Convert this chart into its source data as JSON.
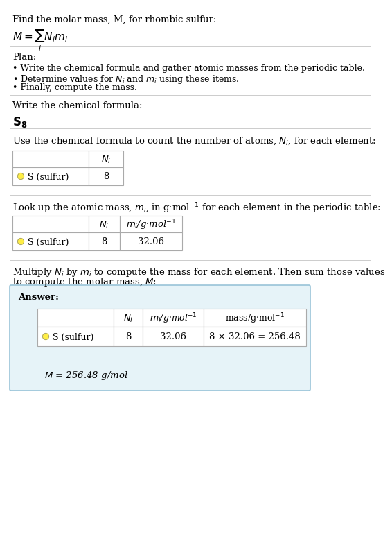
{
  "title_line1": "Find the molar mass, M, for rhombic sulfur:",
  "title_formula": "$M = \\sum_i N_i m_i$",
  "section1_header": "Plan:",
  "section1_bullets": [
    "• Write the chemical formula and gather atomic masses from the periodic table.",
    "• Determine values for $N_i$ and $m_i$ using these items.",
    "• Finally, compute the mass."
  ],
  "section2_header": "Write the chemical formula:",
  "section2_formula": "$\\mathbf{S_8}$",
  "section3_header": "Use the chemical formula to count the number of atoms, $N_i$, for each element:",
  "section3_col": "$N_i$",
  "section3_element": "S (sulfur)",
  "section3_Ni": "8",
  "section4_header": "Look up the atomic mass, $m_i$, in g·mol$^{-1}$ for each element in the periodic table:",
  "section4_cols": [
    "$N_i$",
    "$m_i$/g·mol$^{-1}$"
  ],
  "section4_element": "S (sulfur)",
  "section4_Ni": "8",
  "section4_mi": "32.06",
  "section5_line1": "Multiply $N_i$ by $m_i$ to compute the mass for each element. Then sum those values",
  "section5_line2": "to compute the molar mass, $M$:",
  "answer_label": "Answer:",
  "answer_cols": [
    "$N_i$",
    "$m_i$/g·mol$^{-1}$",
    "mass/g·mol$^{-1}$"
  ],
  "answer_element": "S (sulfur)",
  "answer_Ni": "8",
  "answer_mi": "32.06",
  "answer_mass": "8 × 32.06 = 256.48",
  "answer_final": "$M$ = 256.48 g/mol",
  "element_color": "#FFEE44",
  "answer_bg": "#E6F3F8",
  "answer_border": "#99C4D8",
  "table_border": "#AAAAAA",
  "bg_color": "#FFFFFF",
  "text_color": "#000000",
  "font_size": 9.5,
  "small_font": 9.0,
  "title_font": 9.5,
  "formula_font": 11.0
}
